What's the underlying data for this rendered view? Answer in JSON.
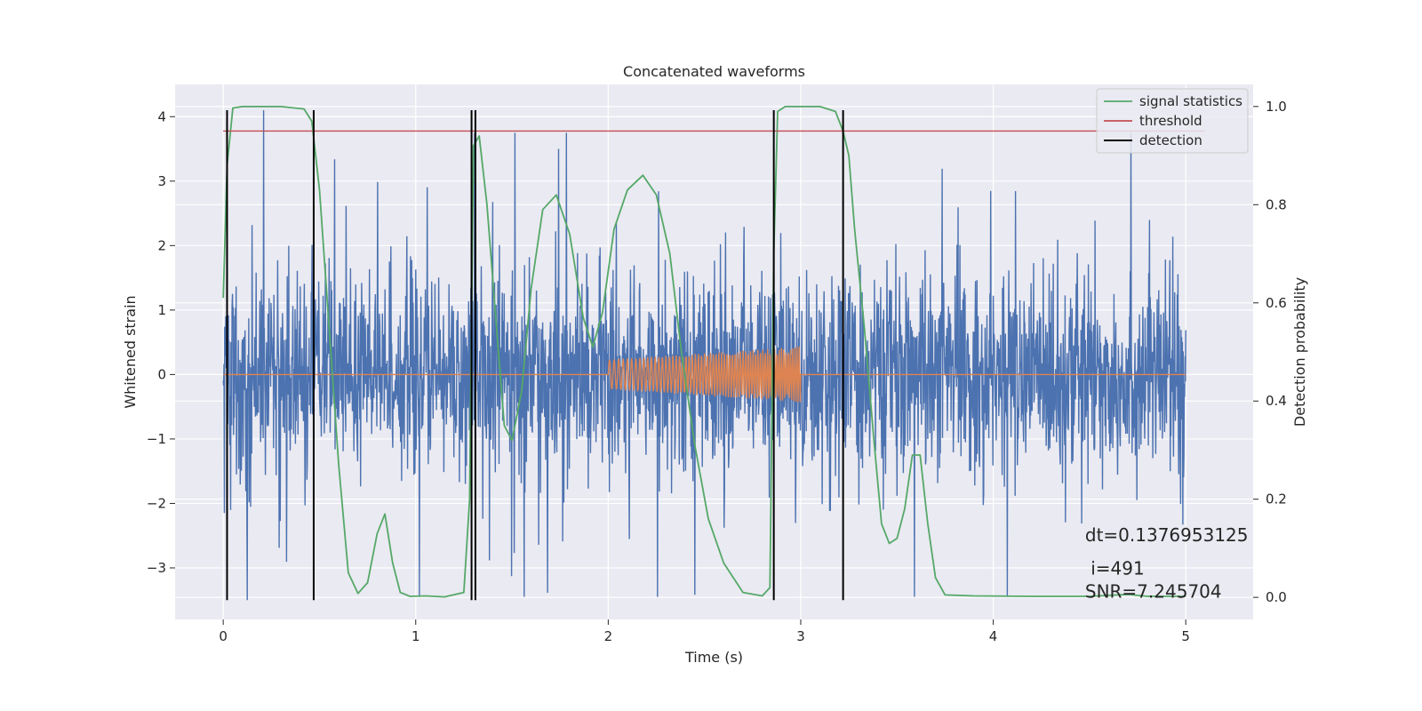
{
  "chart_data": {
    "type": "line",
    "title": "Concatenated waveforms",
    "xlabel": "Time (s)",
    "ylabel": "Whitened strain",
    "y2label": "Detection probability",
    "xlim": [
      -0.25,
      5.35
    ],
    "ylim": [
      -3.8,
      4.5
    ],
    "y2lim": [
      -0.045,
      1.045
    ],
    "xticks": [
      0,
      1,
      2,
      3,
      4,
      5
    ],
    "yticks": [
      -3,
      -2,
      -1,
      0,
      1,
      2,
      3,
      4
    ],
    "y2ticks": [
      0.0,
      0.2,
      0.4,
      0.6,
      0.8,
      1.0
    ],
    "xtick_labels": [
      "0",
      "1",
      "2",
      "3",
      "4",
      "5"
    ],
    "ytick_labels": [
      "−3",
      "−2",
      "−1",
      "0",
      "1",
      "2",
      "3",
      "4"
    ],
    "y2tick_labels": [
      "0.0",
      "0.2",
      "0.4",
      "0.6",
      "0.8",
      "1.0"
    ],
    "grid": true,
    "legend_position": "top-right",
    "colors": {
      "background": "#eaeaf2",
      "grid": "#ffffff",
      "strain": "#4c72b0",
      "injection": "#dd8452",
      "signal_statistics": "#55a868",
      "threshold": "#c44e52",
      "detection": "#000000"
    },
    "series": [
      {
        "name": "signal statistics",
        "axis": "right",
        "x": [
          0.0,
          0.02,
          0.05,
          0.1,
          0.2,
          0.3,
          0.42,
          0.46,
          0.5,
          0.55,
          0.6,
          0.65,
          0.7,
          0.75,
          0.8,
          0.84,
          0.88,
          0.92,
          0.97,
          1.05,
          1.15,
          1.25,
          1.28,
          1.3,
          1.33,
          1.37,
          1.42,
          1.46,
          1.5,
          1.55,
          1.6,
          1.66,
          1.73,
          1.8,
          1.87,
          1.92,
          1.97,
          2.03,
          2.1,
          2.18,
          2.25,
          2.32,
          2.38,
          2.45,
          2.52,
          2.6,
          2.7,
          2.8,
          2.84,
          2.86,
          2.88,
          2.92,
          3.0,
          3.1,
          3.18,
          3.22,
          3.25,
          3.28,
          3.33,
          3.38,
          3.42,
          3.46,
          3.5,
          3.54,
          3.58,
          3.62,
          3.66,
          3.7,
          3.75,
          3.9,
          4.2,
          4.5,
          4.7,
          4.8,
          5.0
        ],
        "values": [
          0.61,
          0.88,
          0.997,
          1.0,
          1.0,
          1.0,
          0.995,
          0.97,
          0.83,
          0.55,
          0.27,
          0.05,
          0.008,
          0.03,
          0.13,
          0.17,
          0.07,
          0.01,
          0.002,
          0.003,
          0.001,
          0.01,
          0.2,
          0.92,
          0.94,
          0.8,
          0.55,
          0.35,
          0.32,
          0.42,
          0.63,
          0.79,
          0.82,
          0.74,
          0.57,
          0.51,
          0.58,
          0.75,
          0.83,
          0.86,
          0.82,
          0.7,
          0.5,
          0.31,
          0.16,
          0.07,
          0.01,
          0.003,
          0.02,
          0.7,
          0.99,
          1.0,
          1.0,
          1.0,
          0.99,
          0.95,
          0.9,
          0.75,
          0.55,
          0.32,
          0.15,
          0.11,
          0.12,
          0.18,
          0.29,
          0.29,
          0.15,
          0.04,
          0.005,
          0.003,
          0.002,
          0.002,
          0.006,
          0.002,
          0.002
        ]
      },
      {
        "name": "threshold",
        "axis": "right",
        "x": [
          0.0,
          5.1
        ],
        "values": [
          0.95,
          0.95
        ]
      },
      {
        "name": "detection",
        "axis": "left",
        "x": [
          0.02,
          0.47,
          1.29,
          1.31,
          2.86,
          3.22
        ],
        "y_range": [
          -3.5,
          4.1
        ]
      },
      {
        "name": "",
        "label": "whitened strain",
        "axis": "left",
        "x_range": [
          0.0,
          5.0
        ],
        "envelope": {
          "typical_range": [
            -1.1,
            1.05
          ],
          "peak_range": [
            -3.5,
            4.1
          ],
          "shown_max": 4.1,
          "shown_min": -3.5
        }
      },
      {
        "name": "",
        "label": "injected waveform",
        "axis": "left",
        "x_range": [
          0.0,
          5.0
        ],
        "chirp_window": [
          2.0,
          3.0
        ],
        "amplitude_start": 0.23,
        "amplitude_end": 0.43
      }
    ],
    "annotations": [
      {
        "text": "dt=0.1376953125",
        "x": 4.5,
        "y": -2.7
      },
      {
        "text": " i=491",
        "x": 4.5,
        "y": -3.05
      },
      {
        "text": "SNR=7.245704",
        "x": 4.5,
        "y": -3.3
      }
    ]
  }
}
